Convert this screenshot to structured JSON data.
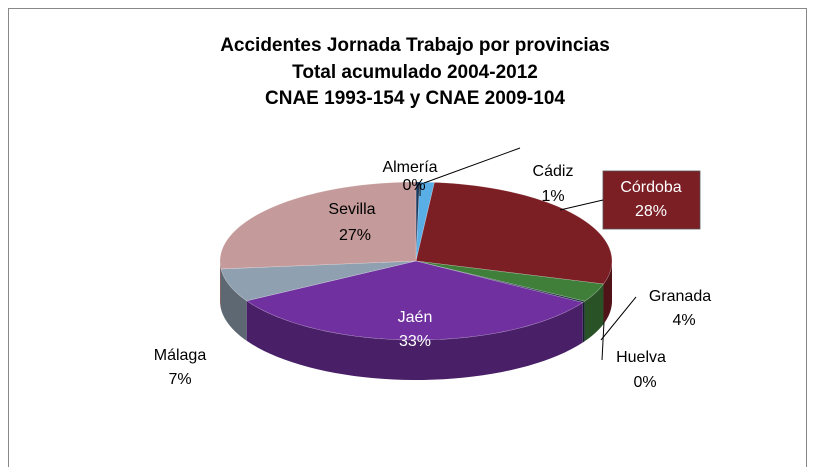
{
  "chart_data": {
    "type": "pie",
    "title": [
      "Accidentes Jornada Trabajo por provincias",
      "Total acumulado 2004-2012",
      "CNAE 1993-154 y CNAE 2009-104"
    ],
    "categories": [
      "Almería",
      "Cádiz",
      "Córdoba",
      "Granada",
      "Huelva",
      "Jaén",
      "Málaga",
      "Sevilla"
    ],
    "values": [
      0.3,
      1.2,
      28.2,
      3.8,
      0.3,
      32.8,
      6.8,
      26.6
    ],
    "value_labels": [
      "0%",
      "1%",
      "28%",
      "4%",
      "0%",
      "33%",
      "7%",
      "27%"
    ],
    "colors": [
      "#1f3a5f",
      "#5aaee6",
      "#7b1f25",
      "#3f7f3a",
      "#1b3340",
      "#7030a0",
      "#8fa0b0",
      "#c49a9a"
    ]
  }
}
